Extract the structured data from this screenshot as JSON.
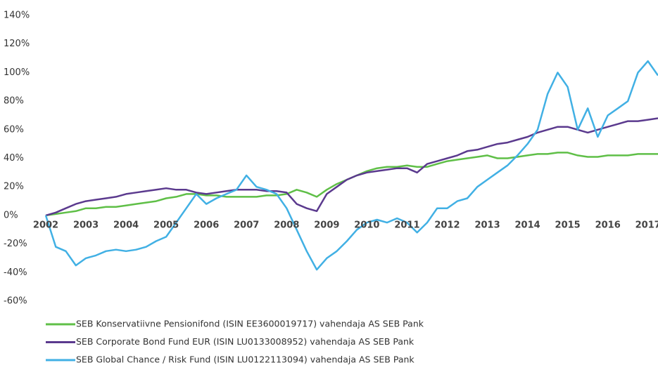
{
  "chart_data": {
    "type": "line",
    "x": [
      2002,
      2002.25,
      2002.5,
      2002.75,
      2003,
      2003.25,
      2003.5,
      2003.75,
      2004,
      2004.25,
      2004.5,
      2004.75,
      2005,
      2005.25,
      2005.5,
      2005.75,
      2006,
      2006.25,
      2006.5,
      2006.75,
      2007,
      2007.25,
      2007.5,
      2007.75,
      2008,
      2008.25,
      2008.5,
      2008.75,
      2009,
      2009.25,
      2009.5,
      2009.75,
      2010,
      2010.25,
      2010.5,
      2010.75,
      2011,
      2011.25,
      2011.5,
      2011.75,
      2012,
      2012.25,
      2012.5,
      2012.75,
      2013,
      2013.25,
      2013.5,
      2013.75,
      2014,
      2014.25,
      2014.5,
      2014.75,
      2015,
      2015.25,
      2015.5,
      2015.75,
      2016,
      2016.25,
      2016.5,
      2016.75,
      2017,
      2017.25
    ],
    "series": [
      {
        "name": "SEB Konservatiivne Pensionifond (ISIN EE3600019717) vahendaja AS SEB Pank",
        "color": "#5fbf47",
        "values": [
          0,
          1,
          2,
          3,
          5,
          5,
          6,
          6,
          7,
          8,
          9,
          10,
          12,
          13,
          15,
          15,
          14,
          14,
          13,
          13,
          13,
          13,
          14,
          14,
          15,
          18,
          16,
          13,
          18,
          22,
          25,
          28,
          31,
          33,
          34,
          34,
          35,
          34,
          34,
          36,
          38,
          39,
          40,
          41,
          42,
          40,
          40,
          41,
          42,
          43,
          43,
          44,
          44,
          42,
          41,
          41,
          42,
          42,
          42,
          43,
          43,
          43
        ]
      },
      {
        "name": "SEB Corporate Bond Fund EUR (ISIN LU0133008952) vahendaja AS SEB Pank",
        "color": "#5b3a8e",
        "values": [
          0,
          2,
          5,
          8,
          10,
          11,
          12,
          13,
          15,
          16,
          17,
          18,
          19,
          18,
          18,
          16,
          15,
          16,
          17,
          18,
          18,
          18,
          17,
          17,
          16,
          8,
          5,
          3,
          15,
          20,
          25,
          28,
          30,
          31,
          32,
          33,
          33,
          30,
          36,
          38,
          40,
          42,
          45,
          46,
          48,
          50,
          51,
          53,
          55,
          58,
          60,
          62,
          62,
          60,
          58,
          60,
          62,
          64,
          66,
          66,
          67,
          68
        ]
      },
      {
        "name": "SEB Global Chance / Risk Fund (ISIN LU0122113094) vahendaja AS SEB Pank",
        "color": "#41b0e4",
        "values": [
          0,
          -22,
          -25,
          -35,
          -30,
          -28,
          -25,
          -24,
          -25,
          -24,
          -22,
          -18,
          -15,
          -5,
          5,
          15,
          8,
          12,
          15,
          18,
          28,
          20,
          18,
          15,
          5,
          -10,
          -25,
          -38,
          -30,
          -25,
          -18,
          -10,
          -5,
          -3,
          -5,
          -2,
          -5,
          -12,
          -5,
          5,
          5,
          10,
          12,
          20,
          25,
          30,
          35,
          42,
          50,
          60,
          85,
          100,
          90,
          60,
          75,
          55,
          70,
          75,
          80,
          100,
          108,
          98
        ]
      }
    ],
    "xlim": [
      2002,
      2017.25
    ],
    "xticks": [
      2002,
      2003,
      2004,
      2005,
      2006,
      2007,
      2008,
      2009,
      2010,
      2011,
      2012,
      2013,
      2014,
      2015,
      2016,
      2017
    ],
    "ylim": [
      -60,
      140
    ],
    "yticks": [
      {
        "value": -60,
        "label": "-60%"
      },
      {
        "value": -40,
        "label": "-40%"
      },
      {
        "value": -20,
        "label": "-20%"
      },
      {
        "value": 0,
        "label": "0%"
      },
      {
        "value": 20,
        "label": "20%"
      },
      {
        "value": 40,
        "label": "40%"
      },
      {
        "value": 60,
        "label": "60%"
      },
      {
        "value": 80,
        "label": "80%"
      },
      {
        "value": 100,
        "label": "100%"
      },
      {
        "value": 120,
        "label": "120%"
      },
      {
        "value": 140,
        "label": "140%"
      }
    ],
    "grid": false,
    "legend": "bottom"
  }
}
